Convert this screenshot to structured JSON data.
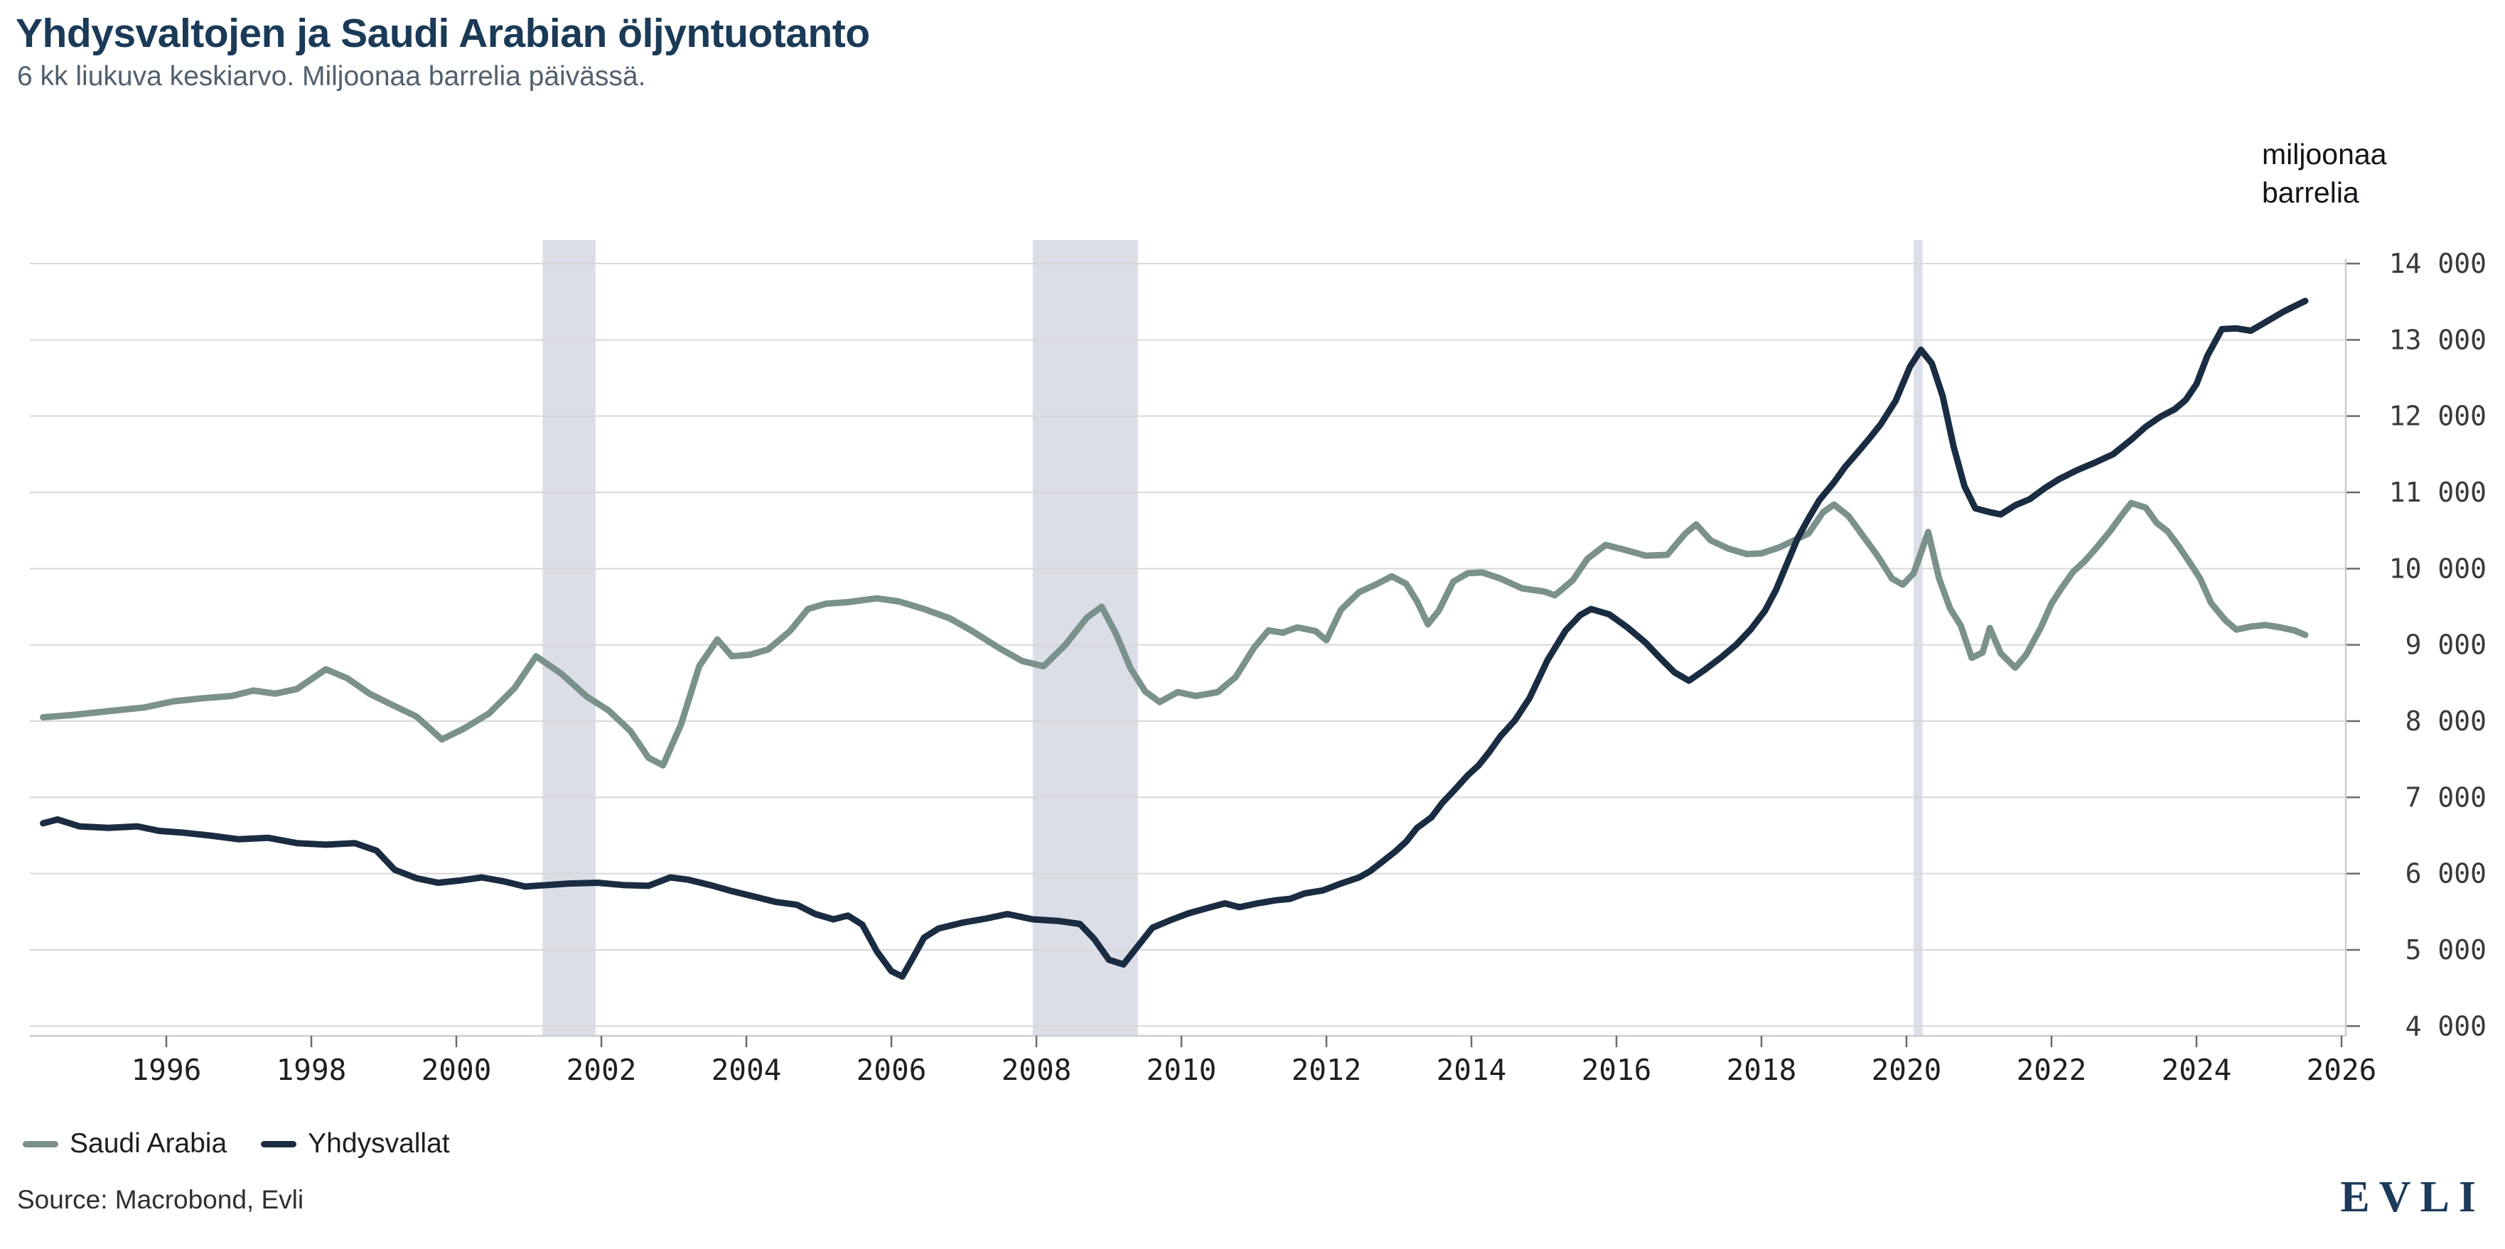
{
  "header": {
    "title": "Yhdysvaltojen ja Saudi Arabian öljyntuotanto",
    "subtitle": "6 kk liukuva keskiarvo. Miljoonaa barrelia päivässä."
  },
  "unit_label": {
    "line1": "miljoonaa",
    "line2": "barrelia"
  },
  "legend": {
    "items": [
      {
        "label": "Saudi Arabia",
        "color": "#7a918c"
      },
      {
        "label": "Yhdysvallat",
        "color": "#1a2c42"
      }
    ]
  },
  "source_text": "Source: Macrobond, Evli",
  "logo_text": "EVLI",
  "colors": {
    "title": "#1a3a57",
    "subtitle": "#51606e",
    "saudi_line": "#7a918c",
    "us_line": "#1a2c42",
    "gridline": "#d7d7d7",
    "axis_line": "#c9cdd2",
    "tick_mark": "#6b6b6b",
    "y_tick_text": "#3a3a3a",
    "x_tick_text": "#1f1f1f",
    "recession_band": "#dbdee7"
  },
  "chart_data": {
    "type": "line",
    "title": "Yhdysvaltojen ja Saudi Arabian öljyntuotanto",
    "subtitle": "6 kk liukuva keskiarvo. Miljoonaa barrelia päivässä.",
    "ylabel": "miljoonaa barrelia",
    "xlabel": "",
    "grid": true,
    "legend_position": "bottom-left",
    "x_axis": {
      "tick_years": [
        1996,
        1998,
        2000,
        2002,
        2004,
        2006,
        2008,
        2010,
        2012,
        2014,
        2016,
        2018,
        2020,
        2022,
        2024,
        2026
      ],
      "domain": [
        1994.12,
        2026.06
      ]
    },
    "y_axis": {
      "ticks": [
        4000,
        5000,
        6000,
        7000,
        8000,
        9000,
        10000,
        11000,
        12000,
        13000,
        14000
      ],
      "ylim": [
        4000,
        14000
      ],
      "tick_format": "space-thousands"
    },
    "recession_bands": [
      {
        "from": 2001.19,
        "to": 2001.92
      },
      {
        "from": 2007.95,
        "to": 2009.4
      },
      {
        "from": 2020.1,
        "to": 2020.22
      }
    ],
    "series": [
      {
        "name": "Saudi Arabia",
        "color": "#7a918c",
        "points": [
          [
            1994.3,
            8050
          ],
          [
            1994.7,
            8080
          ],
          [
            1995.2,
            8130
          ],
          [
            1995.7,
            8180
          ],
          [
            1996.1,
            8260
          ],
          [
            1996.5,
            8300
          ],
          [
            1996.9,
            8330
          ],
          [
            1997.2,
            8400
          ],
          [
            1997.5,
            8360
          ],
          [
            1997.8,
            8420
          ],
          [
            1998.2,
            8680
          ],
          [
            1998.5,
            8560
          ],
          [
            1998.8,
            8360
          ],
          [
            1999.1,
            8220
          ],
          [
            1999.45,
            8060
          ],
          [
            1999.8,
            7760
          ],
          [
            2000.1,
            7900
          ],
          [
            2000.45,
            8100
          ],
          [
            2000.8,
            8430
          ],
          [
            2001.1,
            8850
          ],
          [
            2001.45,
            8620
          ],
          [
            2001.8,
            8320
          ],
          [
            2002.1,
            8140
          ],
          [
            2002.4,
            7870
          ],
          [
            2002.65,
            7520
          ],
          [
            2002.85,
            7420
          ],
          [
            2003.1,
            7960
          ],
          [
            2003.35,
            8720
          ],
          [
            2003.6,
            9070
          ],
          [
            2003.8,
            8850
          ],
          [
            2004.05,
            8870
          ],
          [
            2004.3,
            8940
          ],
          [
            2004.6,
            9180
          ],
          [
            2004.85,
            9470
          ],
          [
            2005.1,
            9540
          ],
          [
            2005.4,
            9560
          ],
          [
            2005.8,
            9610
          ],
          [
            2006.1,
            9570
          ],
          [
            2006.45,
            9470
          ],
          [
            2006.8,
            9350
          ],
          [
            2007.1,
            9190
          ],
          [
            2007.5,
            8950
          ],
          [
            2007.8,
            8790
          ],
          [
            2008.1,
            8720
          ],
          [
            2008.4,
            9000
          ],
          [
            2008.7,
            9360
          ],
          [
            2008.9,
            9500
          ],
          [
            2009.1,
            9140
          ],
          [
            2009.3,
            8690
          ],
          [
            2009.5,
            8390
          ],
          [
            2009.7,
            8250
          ],
          [
            2009.95,
            8380
          ],
          [
            2010.2,
            8330
          ],
          [
            2010.5,
            8380
          ],
          [
            2010.75,
            8580
          ],
          [
            2011.0,
            8960
          ],
          [
            2011.2,
            9190
          ],
          [
            2011.4,
            9160
          ],
          [
            2011.6,
            9230
          ],
          [
            2011.85,
            9180
          ],
          [
            2012.0,
            9060
          ],
          [
            2012.2,
            9460
          ],
          [
            2012.45,
            9690
          ],
          [
            2012.7,
            9800
          ],
          [
            2012.9,
            9900
          ],
          [
            2013.1,
            9800
          ],
          [
            2013.25,
            9570
          ],
          [
            2013.4,
            9270
          ],
          [
            2013.55,
            9450
          ],
          [
            2013.75,
            9830
          ],
          [
            2013.95,
            9940
          ],
          [
            2014.15,
            9950
          ],
          [
            2014.4,
            9870
          ],
          [
            2014.7,
            9740
          ],
          [
            2015.0,
            9700
          ],
          [
            2015.15,
            9650
          ],
          [
            2015.4,
            9850
          ],
          [
            2015.6,
            10130
          ],
          [
            2015.85,
            10310
          ],
          [
            2016.1,
            10250
          ],
          [
            2016.4,
            10170
          ],
          [
            2016.7,
            10180
          ],
          [
            2016.95,
            10460
          ],
          [
            2017.1,
            10580
          ],
          [
            2017.3,
            10370
          ],
          [
            2017.55,
            10260
          ],
          [
            2017.8,
            10190
          ],
          [
            2018.0,
            10200
          ],
          [
            2018.25,
            10280
          ],
          [
            2018.45,
            10370
          ],
          [
            2018.65,
            10460
          ],
          [
            2018.85,
            10740
          ],
          [
            2019.0,
            10840
          ],
          [
            2019.2,
            10690
          ],
          [
            2019.4,
            10430
          ],
          [
            2019.6,
            10170
          ],
          [
            2019.8,
            9870
          ],
          [
            2019.95,
            9790
          ],
          [
            2020.1,
            9940
          ],
          [
            2020.3,
            10480
          ],
          [
            2020.45,
            9870
          ],
          [
            2020.6,
            9480
          ],
          [
            2020.75,
            9250
          ],
          [
            2020.9,
            8830
          ],
          [
            2021.05,
            8900
          ],
          [
            2021.15,
            9220
          ],
          [
            2021.3,
            8890
          ],
          [
            2021.5,
            8700
          ],
          [
            2021.65,
            8870
          ],
          [
            2021.85,
            9220
          ],
          [
            2022.0,
            9540
          ],
          [
            2022.15,
            9760
          ],
          [
            2022.3,
            9960
          ],
          [
            2022.45,
            10090
          ],
          [
            2022.6,
            10250
          ],
          [
            2022.8,
            10480
          ],
          [
            2023.0,
            10740
          ],
          [
            2023.1,
            10860
          ],
          [
            2023.3,
            10800
          ],
          [
            2023.45,
            10600
          ],
          [
            2023.6,
            10490
          ],
          [
            2023.75,
            10300
          ],
          [
            2023.9,
            10090
          ],
          [
            2024.05,
            9870
          ],
          [
            2024.2,
            9550
          ],
          [
            2024.4,
            9320
          ],
          [
            2024.55,
            9200
          ],
          [
            2024.75,
            9240
          ],
          [
            2024.95,
            9260
          ],
          [
            2025.15,
            9230
          ],
          [
            2025.35,
            9190
          ],
          [
            2025.5,
            9130
          ]
        ]
      },
      {
        "name": "Yhdysvallat",
        "color": "#1a2c42",
        "points": [
          [
            1994.3,
            6660
          ],
          [
            1994.5,
            6710
          ],
          [
            1994.8,
            6620
          ],
          [
            1995.2,
            6600
          ],
          [
            1995.6,
            6620
          ],
          [
            1995.9,
            6560
          ],
          [
            1996.2,
            6540
          ],
          [
            1996.6,
            6500
          ],
          [
            1997.0,
            6450
          ],
          [
            1997.4,
            6470
          ],
          [
            1997.8,
            6400
          ],
          [
            1998.2,
            6380
          ],
          [
            1998.6,
            6400
          ],
          [
            1998.9,
            6300
          ],
          [
            1999.15,
            6050
          ],
          [
            1999.45,
            5940
          ],
          [
            1999.75,
            5880
          ],
          [
            2000.05,
            5910
          ],
          [
            2000.35,
            5950
          ],
          [
            2000.65,
            5900
          ],
          [
            2000.95,
            5830
          ],
          [
            2001.25,
            5850
          ],
          [
            2001.55,
            5870
          ],
          [
            2001.95,
            5880
          ],
          [
            2002.3,
            5850
          ],
          [
            2002.65,
            5840
          ],
          [
            2002.95,
            5950
          ],
          [
            2003.2,
            5920
          ],
          [
            2003.5,
            5850
          ],
          [
            2003.8,
            5770
          ],
          [
            2004.1,
            5700
          ],
          [
            2004.4,
            5630
          ],
          [
            2004.7,
            5590
          ],
          [
            2004.95,
            5470
          ],
          [
            2005.2,
            5400
          ],
          [
            2005.4,
            5450
          ],
          [
            2005.6,
            5330
          ],
          [
            2005.8,
            4980
          ],
          [
            2006.0,
            4720
          ],
          [
            2006.15,
            4650
          ],
          [
            2006.3,
            4900
          ],
          [
            2006.45,
            5160
          ],
          [
            2006.65,
            5280
          ],
          [
            2007.0,
            5360
          ],
          [
            2007.3,
            5410
          ],
          [
            2007.6,
            5470
          ],
          [
            2007.95,
            5400
          ],
          [
            2008.3,
            5380
          ],
          [
            2008.6,
            5340
          ],
          [
            2008.8,
            5140
          ],
          [
            2009.0,
            4870
          ],
          [
            2009.2,
            4810
          ],
          [
            2009.4,
            5050
          ],
          [
            2009.6,
            5290
          ],
          [
            2009.85,
            5390
          ],
          [
            2010.1,
            5480
          ],
          [
            2010.4,
            5560
          ],
          [
            2010.6,
            5610
          ],
          [
            2010.8,
            5560
          ],
          [
            2011.05,
            5610
          ],
          [
            2011.3,
            5650
          ],
          [
            2011.5,
            5670
          ],
          [
            2011.7,
            5740
          ],
          [
            2011.95,
            5780
          ],
          [
            2012.2,
            5870
          ],
          [
            2012.45,
            5950
          ],
          [
            2012.6,
            6030
          ],
          [
            2012.75,
            6140
          ],
          [
            2012.95,
            6290
          ],
          [
            2013.1,
            6420
          ],
          [
            2013.25,
            6600
          ],
          [
            2013.45,
            6740
          ],
          [
            2013.6,
            6930
          ],
          [
            2013.75,
            7080
          ],
          [
            2013.95,
            7290
          ],
          [
            2014.1,
            7420
          ],
          [
            2014.25,
            7600
          ],
          [
            2014.4,
            7800
          ],
          [
            2014.6,
            8010
          ],
          [
            2014.8,
            8300
          ],
          [
            2015.05,
            8800
          ],
          [
            2015.3,
            9190
          ],
          [
            2015.5,
            9390
          ],
          [
            2015.65,
            9470
          ],
          [
            2015.9,
            9400
          ],
          [
            2016.15,
            9230
          ],
          [
            2016.4,
            9030
          ],
          [
            2016.6,
            8830
          ],
          [
            2016.8,
            8640
          ],
          [
            2017.0,
            8530
          ],
          [
            2017.2,
            8660
          ],
          [
            2017.45,
            8840
          ],
          [
            2017.65,
            9000
          ],
          [
            2017.85,
            9200
          ],
          [
            2018.05,
            9450
          ],
          [
            2018.2,
            9720
          ],
          [
            2018.35,
            10060
          ],
          [
            2018.5,
            10400
          ],
          [
            2018.65,
            10660
          ],
          [
            2018.8,
            10900
          ],
          [
            2019.0,
            11130
          ],
          [
            2019.15,
            11330
          ],
          [
            2019.35,
            11550
          ],
          [
            2019.5,
            11720
          ],
          [
            2019.65,
            11900
          ],
          [
            2019.85,
            12200
          ],
          [
            2020.05,
            12650
          ],
          [
            2020.2,
            12870
          ],
          [
            2020.35,
            12690
          ],
          [
            2020.5,
            12260
          ],
          [
            2020.65,
            11600
          ],
          [
            2020.8,
            11080
          ],
          [
            2020.95,
            10790
          ],
          [
            2021.15,
            10740
          ],
          [
            2021.3,
            10710
          ],
          [
            2021.5,
            10830
          ],
          [
            2021.7,
            10910
          ],
          [
            2021.9,
            11050
          ],
          [
            2022.1,
            11170
          ],
          [
            2022.35,
            11290
          ],
          [
            2022.6,
            11390
          ],
          [
            2022.85,
            11500
          ],
          [
            2023.1,
            11690
          ],
          [
            2023.3,
            11860
          ],
          [
            2023.5,
            11990
          ],
          [
            2023.7,
            12090
          ],
          [
            2023.85,
            12210
          ],
          [
            2024.0,
            12420
          ],
          [
            2024.15,
            12790
          ],
          [
            2024.35,
            13140
          ],
          [
            2024.55,
            13150
          ],
          [
            2024.75,
            13120
          ],
          [
            2024.95,
            13230
          ],
          [
            2025.2,
            13370
          ],
          [
            2025.5,
            13510
          ]
        ]
      }
    ]
  }
}
